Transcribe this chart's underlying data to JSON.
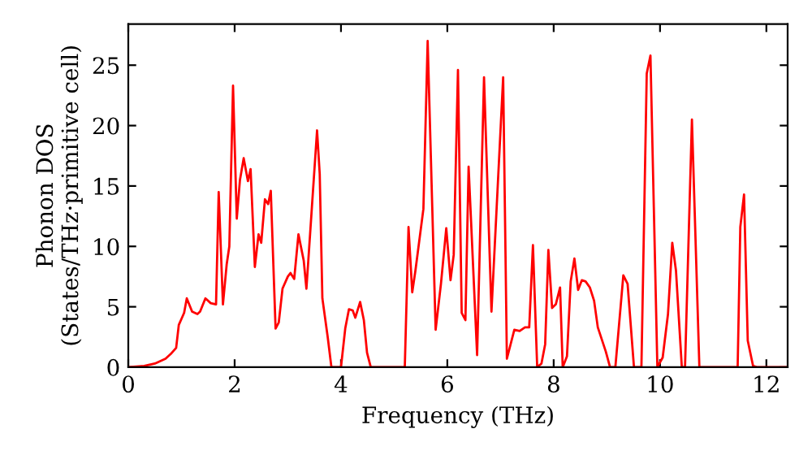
{
  "chart_data": {
    "type": "line",
    "xlabel": "Frequency (THz)",
    "ylabel": "Phonon DOS\n(States/THz·primitive cell)",
    "xlim": [
      0,
      12.4
    ],
    "ylim": [
      0,
      28.4
    ],
    "xticks": [
      0,
      2,
      4,
      6,
      8,
      10,
      12
    ],
    "yticks": [
      0,
      5,
      10,
      15,
      20,
      25
    ],
    "grid": false,
    "legend": false,
    "marker": "none",
    "line_style": "solid",
    "series": [
      {
        "color": "#ff0000",
        "x": [
          0,
          0.3,
          0.5,
          0.7,
          0.8,
          0.9,
          0.95,
          1.0,
          1.05,
          1.1,
          1.2,
          1.3,
          1.35,
          1.45,
          1.55,
          1.65,
          1.7,
          1.78,
          1.85,
          1.9,
          1.97,
          2.04,
          2.1,
          2.17,
          2.25,
          2.3,
          2.38,
          2.45,
          2.5,
          2.57,
          2.63,
          2.68,
          2.77,
          2.83,
          2.9,
          3.0,
          3.05,
          3.12,
          3.2,
          3.3,
          3.35,
          3.55,
          3.6,
          3.65,
          3.75,
          3.82,
          4.0,
          4.08,
          4.15,
          4.22,
          4.27,
          4.36,
          4.43,
          4.49,
          4.56,
          5.2,
          5.27,
          5.34,
          5.4,
          5.55,
          5.63,
          5.78,
          5.88,
          5.98,
          6.06,
          6.12,
          6.2,
          6.27,
          6.34,
          6.4,
          6.56,
          6.69,
          6.83,
          7.05,
          7.12,
          7.26,
          7.36,
          7.46,
          7.54,
          7.61,
          7.69,
          7.77,
          7.84,
          7.9,
          7.97,
          8.04,
          8.12,
          8.17,
          8.25,
          8.32,
          8.39,
          8.46,
          8.53,
          8.6,
          8.68,
          8.76,
          8.83,
          8.98,
          9.06,
          9.16,
          9.31,
          9.39,
          9.51,
          9.65,
          9.75,
          9.82,
          9.95,
          10.05,
          10.15,
          10.23,
          10.3,
          10.41,
          10.47,
          10.6,
          10.74,
          11.46,
          11.51,
          11.58,
          11.65,
          11.75,
          11.82,
          12.4
        ],
        "values": [
          0,
          0.1,
          0.3,
          0.7,
          1.1,
          1.6,
          3.5,
          4.0,
          4.5,
          5.7,
          4.6,
          4.4,
          4.6,
          5.7,
          5.3,
          5.2,
          14.5,
          5.2,
          8.5,
          10,
          23.3,
          12.3,
          15.5,
          17.3,
          15.4,
          16.4,
          8.3,
          11,
          10.3,
          13.9,
          13.5,
          14.6,
          3.2,
          3.7,
          6.5,
          7.5,
          7.8,
          7.3,
          11,
          8.8,
          6.5,
          19.6,
          16,
          5.7,
          2.5,
          0,
          0,
          3.2,
          4.8,
          4.7,
          4.1,
          5.4,
          3.9,
          1.2,
          0,
          0,
          11.6,
          6.2,
          8.0,
          13.1,
          27.0,
          3.1,
          6.9,
          11.5,
          7.2,
          9.3,
          24.6,
          4.5,
          3.9,
          16.6,
          1.0,
          24.0,
          4.6,
          24.0,
          0.7,
          3.1,
          3.0,
          3.3,
          3.3,
          10.1,
          0,
          0.3,
          1.9,
          9.7,
          4.9,
          5.2,
          6.6,
          0,
          0.9,
          7.1,
          9.0,
          6.4,
          7.2,
          7.1,
          6.6,
          5.5,
          3.3,
          1.3,
          0,
          0,
          7.6,
          6.9,
          0,
          0,
          24.3,
          25.8,
          0,
          0.8,
          4.4,
          10.3,
          8.0,
          0,
          0,
          20.5,
          0,
          0,
          11.6,
          14.3,
          2.2,
          0.1,
          0,
          0
        ]
      }
    ]
  }
}
